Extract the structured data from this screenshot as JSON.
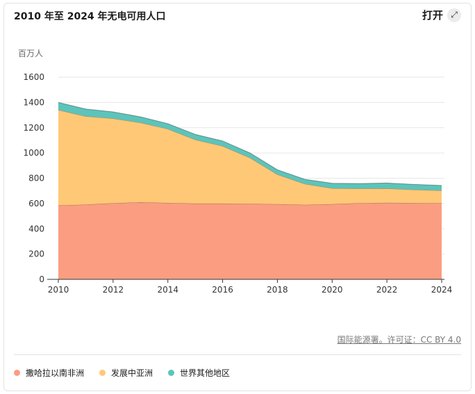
{
  "header": {
    "title": "2010 年至 2024 年无电可用人口",
    "open_label": "打开",
    "open_icon": "expand-arrows-icon"
  },
  "source_text": "国际能源署。许可证：CC BY 4.0",
  "colors": {
    "ssa": "#fb9d80",
    "dev_asia": "#ffc877",
    "rest": "#5cc4bb",
    "grid": "#e6e6e6",
    "axis": "#333333"
  },
  "chart_data": {
    "type": "area",
    "stacked": true,
    "title": "2010 年至 2024 年无电可用人口",
    "ylabel": "百万人",
    "xlabel": "",
    "ylim": [
      0,
      1600
    ],
    "y_ticks": [
      0,
      200,
      400,
      600,
      800,
      1000,
      1200,
      1400,
      1600
    ],
    "x_ticks": [
      2010,
      2012,
      2014,
      2016,
      2018,
      2020,
      2022,
      2024
    ],
    "x": [
      2010,
      2011,
      2012,
      2013,
      2014,
      2015,
      2016,
      2017,
      2018,
      2019,
      2020,
      2021,
      2022,
      2023,
      2024
    ],
    "grid": true,
    "legend_position": "bottom",
    "series": [
      {
        "name": "撒哈拉以南非洲",
        "color": "#fb9d80",
        "values": [
          585,
          592,
          603,
          610,
          605,
          600,
          600,
          597,
          595,
          590,
          595,
          603,
          606,
          604,
          603
        ]
      },
      {
        "name": "发展中亚洲",
        "color": "#ffc877",
        "values": [
          755,
          698,
          670,
          630,
          585,
          505,
          455,
          365,
          235,
          165,
          125,
          115,
          113,
          105,
          100
        ]
      },
      {
        "name": "世界其他地区",
        "color": "#5cc4bb",
        "values": [
          60,
          58,
          52,
          46,
          42,
          42,
          40,
          38,
          37,
          37,
          40,
          40,
          43,
          42,
          40
        ]
      }
    ]
  }
}
